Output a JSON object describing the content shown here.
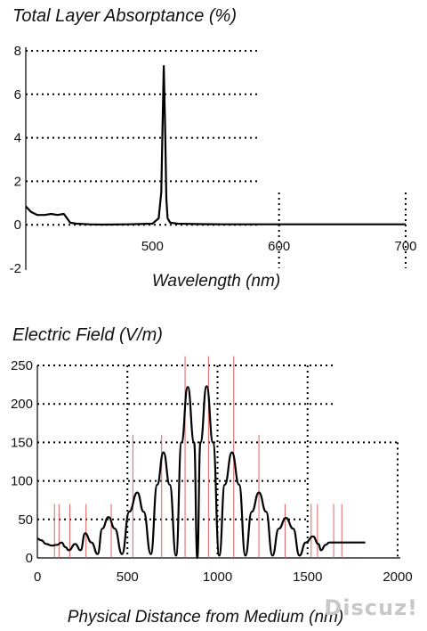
{
  "watermark": "Discuz!",
  "chart_data": [
    {
      "type": "line",
      "title": "Total Layer Absorptance (%)",
      "xlabel": "Wavelength (nm)",
      "ylabel": "",
      "xlim": [
        400,
        700
      ],
      "ylim": [
        -2,
        8
      ],
      "xticks": [
        500,
        600,
        700
      ],
      "yticks": [
        -2,
        0,
        2,
        4,
        6,
        8
      ],
      "xtick_labels": [
        "500",
        "600",
        "700"
      ],
      "ytick_labels": [
        "-2",
        "0",
        "2",
        "4",
        "6",
        "8"
      ],
      "grid": true,
      "series": [
        {
          "x": [
            400,
            404,
            409,
            415,
            420,
            425,
            430,
            432,
            435,
            440,
            450,
            460,
            480,
            500,
            505,
            507,
            508,
            509,
            510,
            511,
            512,
            514,
            520,
            540,
            560,
            600,
            650,
            700
          ],
          "y": [
            0.85,
            0.6,
            0.45,
            0.45,
            0.5,
            0.45,
            0.5,
            0.35,
            0.1,
            0.05,
            0.02,
            0.01,
            0.02,
            0.05,
            0.3,
            1.5,
            4.5,
            7.3,
            4.5,
            1.2,
            0.3,
            0.1,
            0.05,
            0.03,
            0.02,
            0.02,
            0.02,
            0.02
          ]
        }
      ]
    },
    {
      "type": "line",
      "title": "Electric Field (V/m)",
      "xlabel": "Physical Distance from Medium (nm)",
      "ylabel": "",
      "xlim": [
        0,
        2000
      ],
      "ylim": [
        0,
        250
      ],
      "xticks": [
        0,
        500,
        1000,
        1500,
        2000
      ],
      "yticks": [
        0,
        50,
        100,
        150,
        200,
        250
      ],
      "xtick_labels": [
        "0",
        "500",
        "1000",
        "1500",
        "2000"
      ],
      "ytick_labels": [
        "0",
        "50",
        "100",
        "150",
        "200",
        "250"
      ],
      "grid": true,
      "envelope_peaks": [
        {
          "x": 0,
          "y": 25
        },
        {
          "x": 50,
          "y": 18
        },
        {
          "x": 110,
          "y": 16
        },
        {
          "x": 135,
          "y": 20
        },
        {
          "x": 210,
          "y": 18
        },
        {
          "x": 265,
          "y": 32
        },
        {
          "x": 395,
          "y": 53
        },
        {
          "x": 555,
          "y": 85
        },
        {
          "x": 700,
          "y": 137
        },
        {
          "x": 835,
          "y": 222
        },
        {
          "x": 940,
          "y": 223
        },
        {
          "x": 1080,
          "y": 137
        },
        {
          "x": 1230,
          "y": 85
        },
        {
          "x": 1380,
          "y": 52
        },
        {
          "x": 1530,
          "y": 28
        },
        {
          "x": 1620,
          "y": 20
        },
        {
          "x": 1820,
          "y": 20
        }
      ],
      "field_zeros": [
        155,
        240,
        335,
        470,
        630,
        770,
        888,
        1010,
        1155,
        1305,
        1455,
        1575
      ],
      "layer_boundaries": [
        95,
        120,
        180,
        270,
        410,
        530,
        690,
        820,
        950,
        1090,
        1230,
        1375,
        1520,
        1555,
        1645,
        1690
      ],
      "series": [
        {
          "x": [
            0,
            20,
            50,
            80,
            110,
            135,
            155,
            175,
            210,
            240,
            265,
            300,
            335,
            360,
            395,
            430,
            470,
            510,
            555,
            590,
            630,
            665,
            700,
            735,
            770,
            800,
            835,
            870,
            888,
            905,
            940,
            975,
            1010,
            1040,
            1080,
            1120,
            1155,
            1190,
            1230,
            1270,
            1305,
            1340,
            1380,
            1420,
            1455,
            1490,
            1530,
            1560,
            1575,
            1600,
            1620,
            1700,
            1820
          ],
          "y": [
            25,
            23,
            18,
            16,
            17,
            20,
            14,
            10,
            18,
            10,
            32,
            20,
            5,
            38,
            53,
            38,
            5,
            60,
            85,
            60,
            5,
            95,
            137,
            95,
            3,
            150,
            222,
            150,
            0,
            150,
            223,
            150,
            3,
            95,
            137,
            95,
            3,
            60,
            85,
            60,
            3,
            38,
            52,
            38,
            3,
            20,
            28,
            18,
            10,
            17,
            20,
            20,
            20
          ]
        }
      ]
    }
  ]
}
